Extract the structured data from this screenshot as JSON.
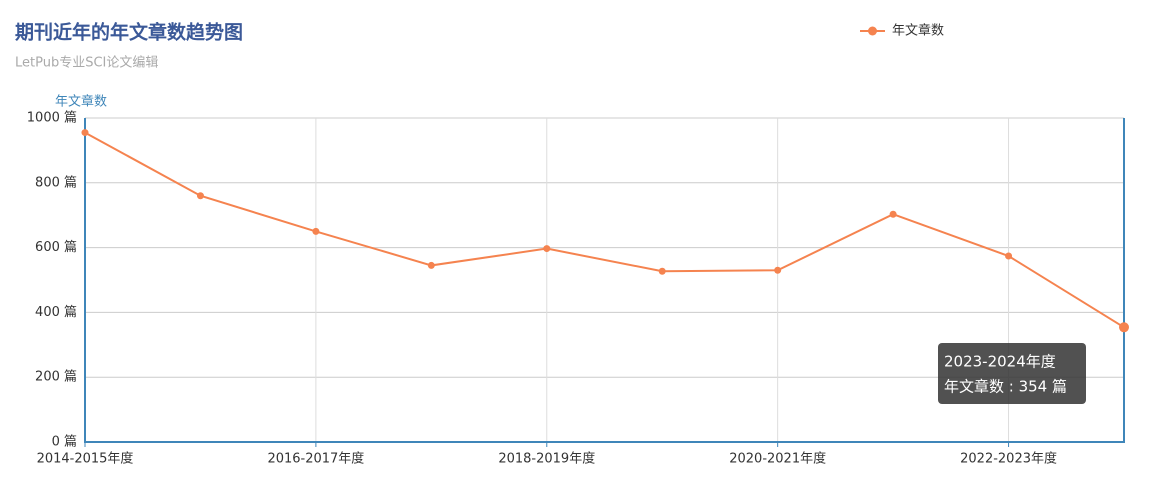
{
  "chart_data": {
    "type": "line",
    "title": "期刊近年的年文章数趋势图",
    "subtitle": "LetPub专业SCI论文编辑",
    "y_axis_label": "年文章数",
    "categories": [
      "2014-2015年度",
      null,
      "2016-2017年度",
      null,
      "2018-2019年度",
      null,
      "2020-2021年度",
      null,
      "2022-2023年度",
      null
    ],
    "series": [
      {
        "name": "年文章数",
        "color": "#f5834f",
        "values": [
          955,
          760,
          650,
          545,
          597,
          527,
          530,
          703,
          574,
          354
        ]
      }
    ],
    "ylim": [
      0,
      1000
    ],
    "yticks": [
      {
        "value": 0,
        "label": "0 篇"
      },
      {
        "value": 200,
        "label": "200 篇"
      },
      {
        "value": 400,
        "label": "400 篇"
      },
      {
        "value": 600,
        "label": "600 篇"
      },
      {
        "value": 800,
        "label": "800 篇"
      },
      {
        "value": 1000,
        "label": "1000 篇"
      }
    ],
    "grid": true,
    "legend": "top-right",
    "tooltip": {
      "title": "2023-2024年度",
      "text": "年文章数 : 354 篇"
    }
  }
}
